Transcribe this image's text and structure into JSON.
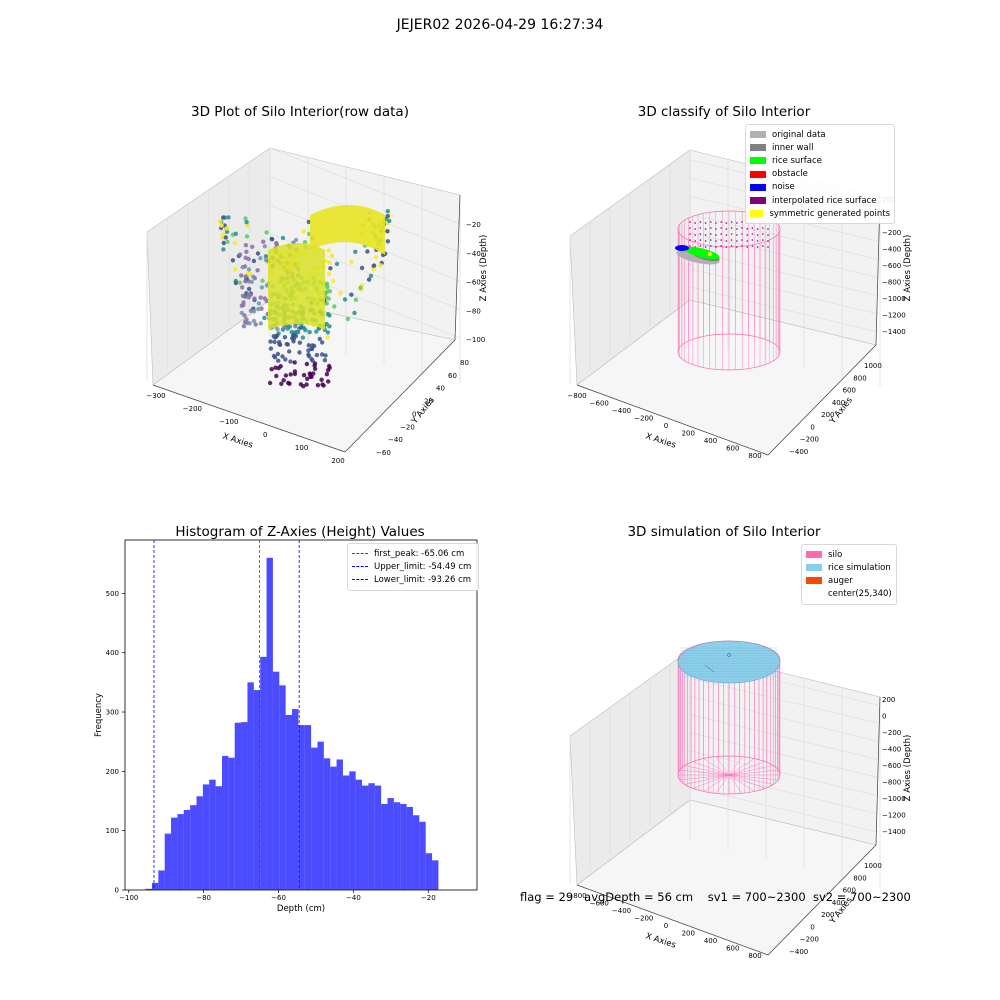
{
  "suptitle": "JEJER02 2026-04-29 16:27:34",
  "footer": {
    "flag": "flag = 29",
    "avg_depth": "avgDepth = 56 cm",
    "sv1": "sv1 = 700~2300",
    "sv2": "sv2 = 700~2300"
  },
  "colors": {
    "silo": "#ff69b4",
    "rice_simulation": "#87ceeb",
    "auger": "#ff4500",
    "hist_bar": "#0000ff",
    "first_peak": "#ff0000",
    "limit": "#0000ff",
    "original_data": "#b0b0b0",
    "inner_wall": "#808080",
    "rice_surface": "#00ff00",
    "obstacle": "#ff0000",
    "noise": "#0000ff",
    "interpolated": "#800080",
    "symmetric": "#ffff00"
  },
  "panel1": {
    "title": "3D Plot of Silo Interior(row data)",
    "xlabel": "X Axies",
    "ylabel": "Y Axies",
    "zlabel": "Z Axies (Depth)",
    "xticks": [
      "−300",
      "−200",
      "−100",
      "0",
      "100",
      "200"
    ],
    "yticks": [
      "−60",
      "−40",
      "−20",
      "0",
      "20",
      "40",
      "60",
      "80"
    ],
    "zticks": [
      "−100",
      "−80",
      "−60",
      "−40",
      "−20"
    ]
  },
  "panel2": {
    "title": "3D classify of Silo Interior",
    "xlabel": "X Axies",
    "ylabel": "Y Axies",
    "zlabel": "Z Axies (Depth)",
    "xticks": [
      "−800",
      "−600",
      "−400",
      "−200",
      "0",
      "200",
      "400",
      "600",
      "800"
    ],
    "yticks": [
      "−400",
      "−200",
      "0",
      "200",
      "400",
      "600",
      "800",
      "1000"
    ],
    "zticks": [
      "−1400",
      "−1200",
      "−1000",
      "−800",
      "−600",
      "−400",
      "−200",
      "0",
      "200"
    ],
    "legend": [
      {
        "label": "original data",
        "color": "#b0b0b0"
      },
      {
        "label": "inner wall",
        "color": "#808080"
      },
      {
        "label": "rice surface",
        "color": "#00ff00"
      },
      {
        "label": "obstacle",
        "color": "#ff0000"
      },
      {
        "label": "noise",
        "color": "#0000ff"
      },
      {
        "label": "interpolated rice surface",
        "color": "#800080"
      },
      {
        "label": "symmetric generated points",
        "color": "#ffff00"
      }
    ]
  },
  "panel4": {
    "title": "3D simulation of Silo Interior",
    "xlabel": "X Axies",
    "ylabel": "Y Axies",
    "zlabel": "Z Axies (Depth)",
    "xticks": [
      "−800",
      "−600",
      "−400",
      "−200",
      "0",
      "200",
      "400",
      "600",
      "800"
    ],
    "yticks": [
      "−400",
      "−200",
      "0",
      "200",
      "400",
      "600",
      "800",
      "1000"
    ],
    "zticks": [
      "−1400",
      "−1200",
      "−1000",
      "−800",
      "−600",
      "−400",
      "−200",
      "0",
      "200"
    ],
    "legend": [
      {
        "label": "silo",
        "color": "#ff69b4"
      },
      {
        "label": "rice simulation",
        "color": "#87ceeb"
      },
      {
        "label": "auger",
        "color": "#ff4500"
      },
      {
        "label": "center(25,340)",
        "color": ""
      }
    ]
  },
  "chart_data": {
    "type": "bar",
    "title": "Histogram of Z-Axies (Height) Values",
    "xlabel": "Depth (cm)",
    "ylabel": "Frequency",
    "xlim": [
      -101,
      -7
    ],
    "ylim": [
      0,
      590
    ],
    "xticks": [
      -100,
      -80,
      -60,
      -40,
      -20
    ],
    "yticks": [
      0,
      100,
      200,
      300,
      400,
      500
    ],
    "bin_width": 1.7,
    "bin_start": -95.5,
    "values": [
      2,
      12,
      33,
      95,
      122,
      128,
      135,
      143,
      158,
      178,
      186,
      175,
      226,
      223,
      282,
      283,
      350,
      337,
      393,
      560,
      368,
      345,
      295,
      305,
      278,
      278,
      240,
      250,
      222,
      208,
      220,
      193,
      200,
      186,
      176,
      180,
      176,
      145,
      155,
      148,
      145,
      140,
      126,
      115,
      62,
      50
    ],
    "vlines": [
      {
        "label": "first_peak: -65.06 cm",
        "x": -65.06,
        "color": "#ff0000"
      },
      {
        "label": "Upper_limit: -54.49 cm",
        "x": -54.49,
        "color": "#0000ff"
      },
      {
        "label": "Lower_limit: -93.26 cm",
        "x": -93.26,
        "color": "#0000ff"
      }
    ]
  }
}
